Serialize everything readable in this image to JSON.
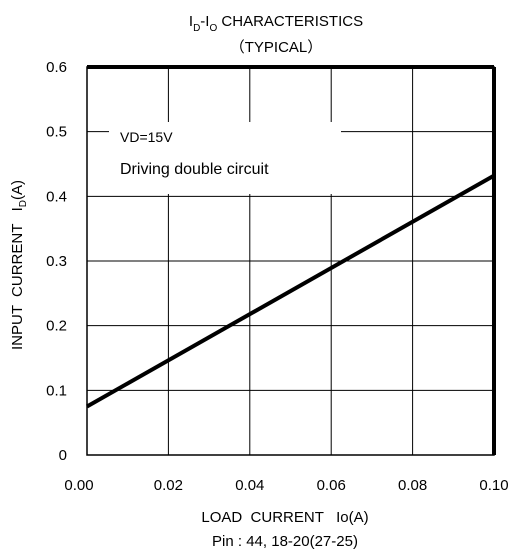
{
  "chart_data": {
    "type": "line",
    "title": {
      "main_1": "I",
      "main_1_sub": "D",
      "main_sep": "-I",
      "main_2_sub": "O",
      "main_rest": "  CHARACTERISTICS",
      "subtitle": "（TYPICAL）"
    },
    "xlabel": "LOAD  CURRENT   Io(A)",
    "ylabel": "INPUT  CURRENT   I",
    "ylabel_sub": "D",
    "ylabel_suffix": "(A)",
    "note": "Pin : 44, 18-20(27-25)",
    "annotation": [
      "VD=15V",
      "Driving double circuit"
    ],
    "xlim": [
      0,
      0.1
    ],
    "ylim": [
      0,
      0.6
    ],
    "x_ticks": [
      "0.00",
      "0.02",
      "0.04",
      "0.06",
      "0.08",
      "0.10"
    ],
    "y_ticks": [
      "0",
      "0.1",
      "0.2",
      "0.3",
      "0.4",
      "0.5",
      "0.6"
    ],
    "grid": true,
    "series": [
      {
        "x": [
          0.0,
          0.1
        ],
        "y": [
          0.075,
          0.432
        ]
      }
    ]
  }
}
